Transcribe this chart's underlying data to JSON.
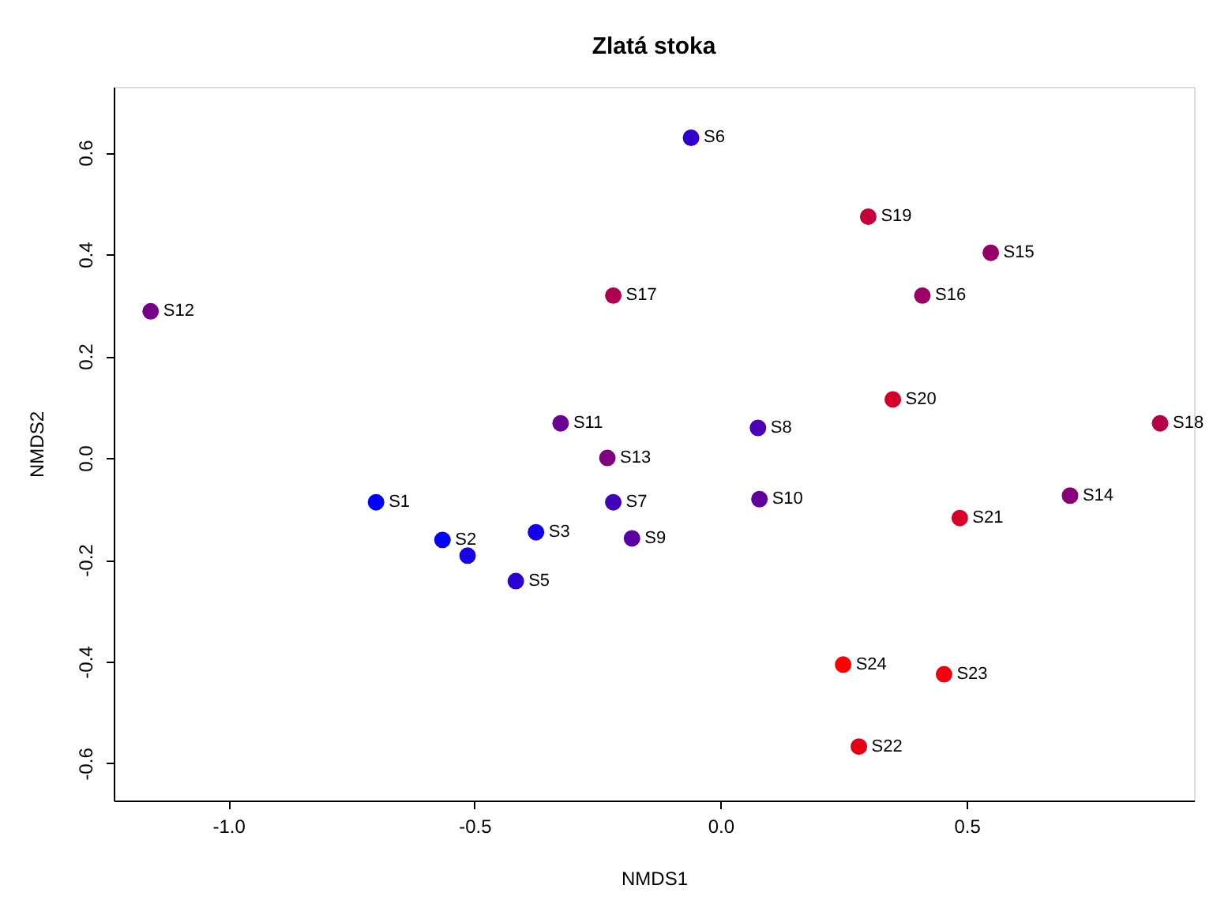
{
  "chart_data": {
    "type": "scatter",
    "title": "Zlatá stoka",
    "xlabel": "NMDS1",
    "ylabel": "NMDS2",
    "xlim": [
      -1.233,
      0.962
    ],
    "ylim": [
      -0.673,
      0.729
    ],
    "xticks": [
      {
        "value": -1.0,
        "label": "-1.0"
      },
      {
        "value": -0.5,
        "label": "-0.5"
      },
      {
        "value": 0.0,
        "label": "0.0"
      },
      {
        "value": 0.5,
        "label": "0.5"
      }
    ],
    "yticks": [
      {
        "value": -0.6,
        "label": "-0.6"
      },
      {
        "value": -0.4,
        "label": "-0.4"
      },
      {
        "value": -0.2,
        "label": "-0.2"
      },
      {
        "value": 0.0,
        "label": "0.0"
      },
      {
        "value": 0.2,
        "label": "0.2"
      },
      {
        "value": 0.4,
        "label": "0.4"
      },
      {
        "value": 0.6,
        "label": "0.6"
      }
    ],
    "grid": false,
    "legend": false,
    "marker": "circle",
    "series": [
      {
        "x": [
          -0.7,
          -0.565,
          -0.514,
          -0.375,
          -0.416,
          -0.06,
          -0.218,
          0.076,
          -0.18,
          0.079,
          -0.325,
          -1.158,
          -0.23,
          0.71,
          0.549,
          0.41,
          -0.218,
          0.893,
          0.3,
          0.35,
          0.486,
          0.281,
          0.454,
          0.249
        ],
        "values": [
          -0.087,
          -0.161,
          -0.192,
          -0.146,
          -0.242,
          0.629,
          -0.087,
          0.059,
          -0.158,
          -0.081,
          0.068,
          0.288,
          0.0,
          -0.074,
          0.403,
          0.319,
          0.319,
          0.068,
          0.474,
          0.115,
          -0.118,
          -0.567,
          -0.425,
          -0.406
        ],
        "colors": [
          "#0000ff",
          "#0505fa",
          "#1a00e6",
          "#1500ea",
          "#2a00d5",
          "#3000cf",
          "#4500ba",
          "#4a00b5",
          "#5a00a5",
          "#60009f",
          "#6a0095",
          "#75008a",
          "#800080",
          "#880077",
          "#950068",
          "#9a0065",
          "#b0004f",
          "#b5004a",
          "#c5003a",
          "#d5002a",
          "#d80027",
          "#e5001a",
          "#f50010",
          "#ff0000"
        ]
      }
    ],
    "annotations": [
      {
        "text": "S1",
        "x": -0.7,
        "y": -0.087
      },
      {
        "text": "S2",
        "x": -0.565,
        "y": -0.161
      },
      {
        "text": "S3",
        "x": -0.375,
        "y": -0.146
      },
      {
        "text": "S5",
        "x": -0.416,
        "y": -0.242
      },
      {
        "text": "S6",
        "x": -0.06,
        "y": 0.629
      },
      {
        "text": "S7",
        "x": -0.218,
        "y": -0.087
      },
      {
        "text": "S8",
        "x": 0.076,
        "y": 0.059
      },
      {
        "text": "S9",
        "x": -0.18,
        "y": -0.158
      },
      {
        "text": "S10",
        "x": 0.079,
        "y": -0.081
      },
      {
        "text": "S11",
        "x": -0.325,
        "y": 0.068
      },
      {
        "text": "S12",
        "x": -1.158,
        "y": 0.288
      },
      {
        "text": "S13",
        "x": -0.23,
        "y": 0.0
      },
      {
        "text": "S14",
        "x": 0.71,
        "y": -0.074
      },
      {
        "text": "S15",
        "x": 0.549,
        "y": 0.403
      },
      {
        "text": "S16",
        "x": 0.41,
        "y": 0.319
      },
      {
        "text": "S17",
        "x": -0.218,
        "y": 0.319
      },
      {
        "text": "S18",
        "x": 0.893,
        "y": 0.068
      },
      {
        "text": "S19",
        "x": 0.3,
        "y": 0.474
      },
      {
        "text": "S20",
        "x": 0.35,
        "y": 0.115
      },
      {
        "text": "S21",
        "x": 0.486,
        "y": -0.118
      },
      {
        "text": "S22",
        "x": 0.281,
        "y": -0.567
      },
      {
        "text": "S23",
        "x": 0.454,
        "y": -0.425
      },
      {
        "text": "S24",
        "x": 0.249,
        "y": -0.406
      }
    ]
  }
}
